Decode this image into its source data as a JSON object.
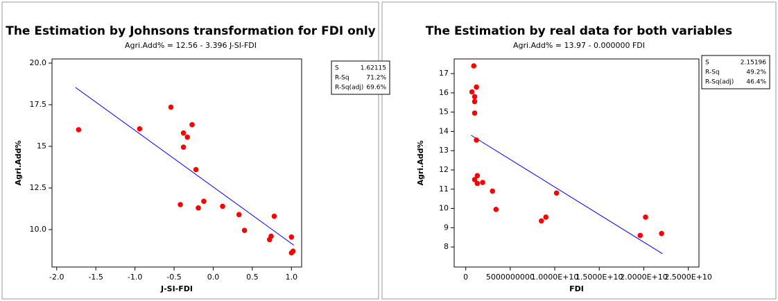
{
  "chart_data": [
    {
      "type": "scatter",
      "title": "The Estimation by Johnsons transformation for FDI only",
      "subtitle": "Agri.Add% = 12.56 - 3.396 J-SI-FDI",
      "x_label": "J-SI-FDI",
      "y_label": "Agri.Add%",
      "xlim": [
        -2.06,
        1.13
      ],
      "ylim": [
        7.75,
        20.25
      ],
      "xticks": [
        {
          "value": -2,
          "label": "-2.0"
        },
        {
          "value": -1.5,
          "label": "-1.5"
        },
        {
          "value": -1,
          "label": "-1.0"
        },
        {
          "value": -0.5,
          "label": "-0.5"
        },
        {
          "value": 0,
          "label": "0.0"
        },
        {
          "value": 0.5,
          "label": "0.5"
        },
        {
          "value": 1,
          "label": "1.0"
        }
      ],
      "yticks": [
        {
          "value": 10,
          "label": "10.0"
        },
        12.5,
        15,
        17.5,
        {
          "value": 20,
          "label": "20.0"
        }
      ],
      "x": [
        -1.72,
        -0.94,
        -0.54,
        -0.27,
        -0.38,
        -0.33,
        -0.38,
        -0.22,
        -0.42,
        -0.12,
        -0.19,
        0.12,
        0.33,
        0.4,
        0.72,
        0.74,
        0.78,
        1.0,
        1.0,
        1.02
      ],
      "values": [
        16.0,
        16.05,
        17.35,
        16.3,
        15.8,
        15.55,
        14.95,
        13.6,
        11.5,
        11.7,
        11.3,
        11.4,
        10.9,
        9.95,
        9.4,
        9.6,
        10.8,
        8.6,
        9.55,
        8.7
      ],
      "point_color": "#ff0000",
      "fit": {
        "x": [
          -1.76,
          1.03
        ],
        "values": [
          18.54,
          9.06
        ],
        "color": "#0000ff"
      },
      "stats": [
        {
          "label": "S",
          "value": "1.62115"
        },
        {
          "label": "R-Sq",
          "value": "71.2%"
        },
        {
          "label": "R-Sq(adj)",
          "value": "69.6%"
        }
      ]
    },
    {
      "type": "scatter",
      "title": "The Estimation by real data for both variables",
      "subtitle": "Agri.Add% = 13.97 - 0.000000 FDI",
      "x_label": "FDI",
      "y_label": "Agri.Add%",
      "xlim": [
        -1300000000,
        26200000000
      ],
      "ylim": [
        6.96,
        17.76
      ],
      "xticks": [
        0,
        5000000000,
        {
          "value": 10000000000,
          "label": "1.0000E+10"
        },
        {
          "value": 15000000000,
          "label": "1.5000E+10"
        },
        {
          "value": 20000000000,
          "label": "2.0000E+10"
        },
        {
          "value": 25000000000,
          "label": "2.5000E+10"
        }
      ],
      "yticks": [
        8,
        9,
        10,
        11,
        12,
        13,
        14,
        15,
        16,
        17
      ],
      "x": [
        900000000,
        700000000,
        1200000000,
        1000000000,
        1000000000,
        1000000000,
        1200000000,
        1300000000,
        1000000000,
        1300000000,
        1900000000,
        3000000000,
        3400000000,
        8500000000,
        9000000000,
        10200000000,
        19600000000,
        20200000000,
        22000000000
      ],
      "values": [
        17.4,
        16.05,
        16.3,
        15.8,
        15.55,
        14.95,
        13.55,
        11.7,
        11.5,
        11.3,
        11.35,
        10.9,
        9.95,
        9.35,
        9.55,
        10.8,
        8.6,
        9.55,
        8.7
      ],
      "point_color": "#ff0000",
      "fit": {
        "x": [
          600000000,
          22100000000
        ],
        "values": [
          13.8,
          7.65
        ],
        "color": "#0000ff"
      },
      "stats": [
        {
          "label": "S",
          "value": "2.15196"
        },
        {
          "label": "R-Sq",
          "value": "49.2%"
        },
        {
          "label": "R-Sq(adj)",
          "value": "46.4%"
        }
      ]
    }
  ]
}
